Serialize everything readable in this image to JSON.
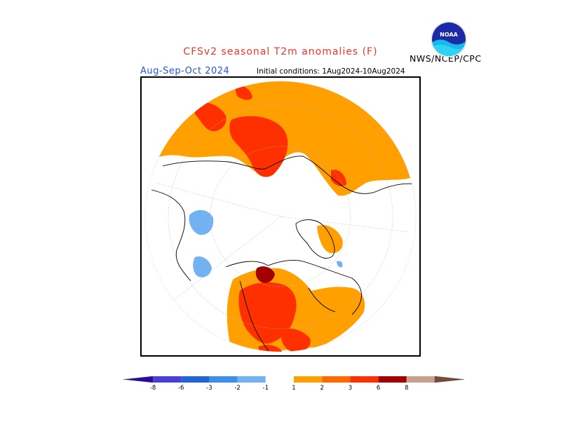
{
  "header": {
    "title": "CFSv2 seasonal T2m anomalies (F)",
    "season": "Aug-Sep-Oct 2024",
    "initial_conditions": "Initial conditions: 1Aug2024-10Aug2024",
    "agency": "NWS/NCEP/CPC",
    "logo_text": "NOAA"
  },
  "legend": {
    "labels": [
      "-8",
      "-6",
      "-3",
      "-2",
      "-1",
      "1",
      "2",
      "3",
      "6",
      "8"
    ],
    "colors": {
      "below_min": "#2a0b9e",
      "b1": "#4a3fd6",
      "b2": "#1f66d3",
      "b3": "#3c8ee8",
      "b4": "#72b1f2",
      "neutral": "#ffffff",
      "a1": "#ffa000",
      "a2": "#ff6a00",
      "a3": "#ff3000",
      "a4": "#a30000",
      "a5": "#c8a090",
      "above_max": "#7a4a3a"
    }
  }
}
